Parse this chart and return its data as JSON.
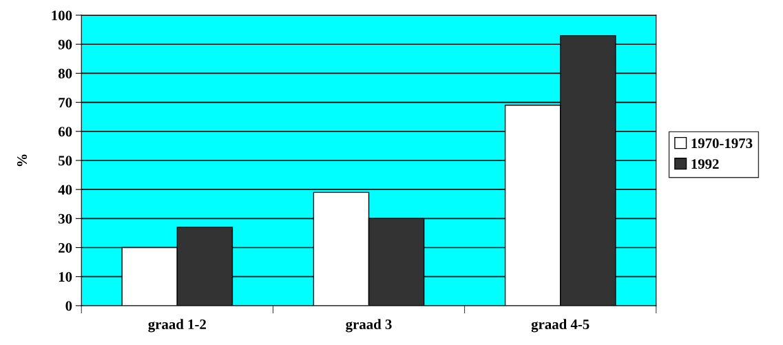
{
  "chart_data": {
    "type": "bar",
    "ylabel": "%",
    "categories": [
      "graad 1-2",
      "graad 3",
      "graad 4-5"
    ],
    "series": [
      {
        "name": "1970-1973",
        "color": "#ffffff",
        "values": [
          20,
          39,
          69
        ]
      },
      {
        "name": "1992",
        "color": "#333333",
        "values": [
          27,
          30,
          93
        ]
      }
    ],
    "ylim": [
      0,
      100
    ],
    "yticks": [
      0,
      10,
      20,
      30,
      40,
      50,
      60,
      70,
      80,
      90,
      100
    ],
    "grid": "y",
    "legend": "right"
  }
}
